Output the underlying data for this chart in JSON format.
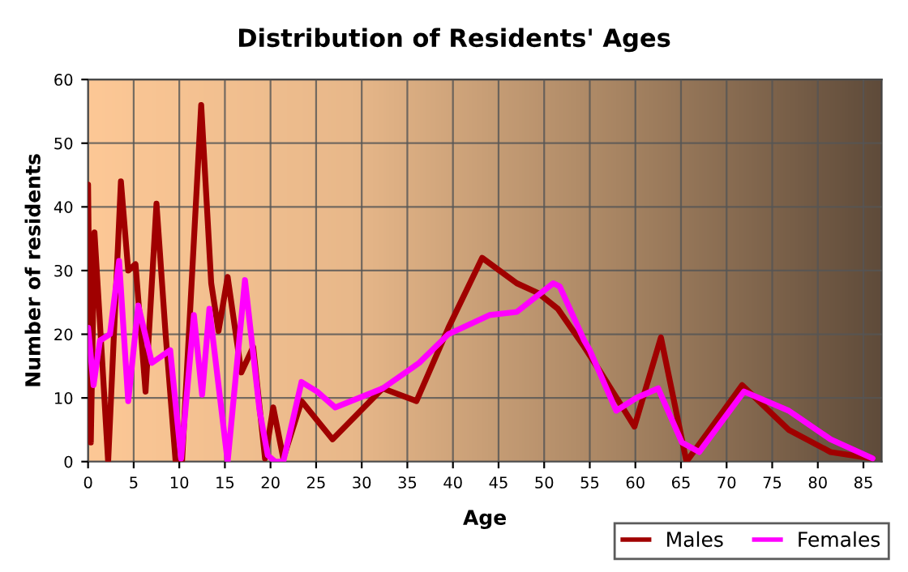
{
  "chart_data": {
    "type": "line",
    "title": "Distribution of Residents' Ages",
    "xlabel": "Age",
    "ylabel": "Number of residents",
    "xlim": [
      0,
      87
    ],
    "xticks": [
      0,
      5,
      10,
      15,
      20,
      25,
      30,
      35,
      40,
      45,
      50,
      55,
      60,
      65,
      70,
      75,
      80,
      85
    ],
    "ylim": [
      0,
      60
    ],
    "yticks": [
      0,
      10,
      20,
      30,
      40,
      50,
      60
    ],
    "grid": true,
    "legend": "bottom right",
    "marker": "none",
    "line_style": "solid",
    "series": [
      {
        "name": "Males",
        "color": "#a00000",
        "x": [
          0,
          0.3,
          0.7,
          1.5,
          2.2,
          3.6,
          4.4,
          5.2,
          6.3,
          7.5,
          8.5,
          9.6,
          10.3,
          12.4,
          13.5,
          14.3,
          15.3,
          16.8,
          18.1,
          19.4,
          20.3,
          21.4,
          23.4,
          26.8,
          32.3,
          36,
          39.5,
          43.2,
          47,
          49.3,
          51.5,
          54.4,
          56.2,
          59.9,
          62.8,
          65.6,
          67.9,
          71.7,
          76.8,
          81.4,
          86
        ],
        "values": [
          43.5,
          3,
          36,
          17,
          0,
          44,
          30,
          31,
          11,
          40.5,
          20,
          0,
          0,
          56,
          28,
          20.5,
          29,
          14,
          18,
          0.5,
          8.5,
          0.5,
          9.5,
          3.5,
          11.5,
          9.5,
          21,
          32,
          28,
          26.5,
          24,
          18,
          14,
          5.5,
          19.5,
          0,
          4.5,
          12,
          5,
          1.5,
          0.5
        ]
      },
      {
        "name": "Females",
        "color": "#ff00ff",
        "x": [
          0,
          0.6,
          1.3,
          2.4,
          3.4,
          4.4,
          5.5,
          7,
          9,
          10.2,
          11.6,
          12.5,
          13.3,
          15.3,
          17.2,
          18.8,
          19.7,
          20.5,
          21.4,
          23.4,
          25.1,
          27.1,
          32.3,
          36.3,
          39.5,
          44,
          47,
          51,
          51.7,
          54.4,
          55,
          57.9,
          60.1,
          62.5,
          65.1,
          67,
          71.9,
          76.8,
          81.4,
          86
        ],
        "values": [
          21,
          12,
          19,
          20,
          31.5,
          9.5,
          24.5,
          15.5,
          17.5,
          0.5,
          23,
          10.5,
          24,
          0,
          28.5,
          8,
          1,
          0,
          0,
          12.5,
          11,
          8.5,
          11.5,
          15.5,
          20,
          23,
          23.5,
          28,
          27.5,
          19,
          17.5,
          8,
          10,
          11.5,
          3,
          1.5,
          11,
          8,
          3.5,
          0.5
        ]
      }
    ]
  }
}
